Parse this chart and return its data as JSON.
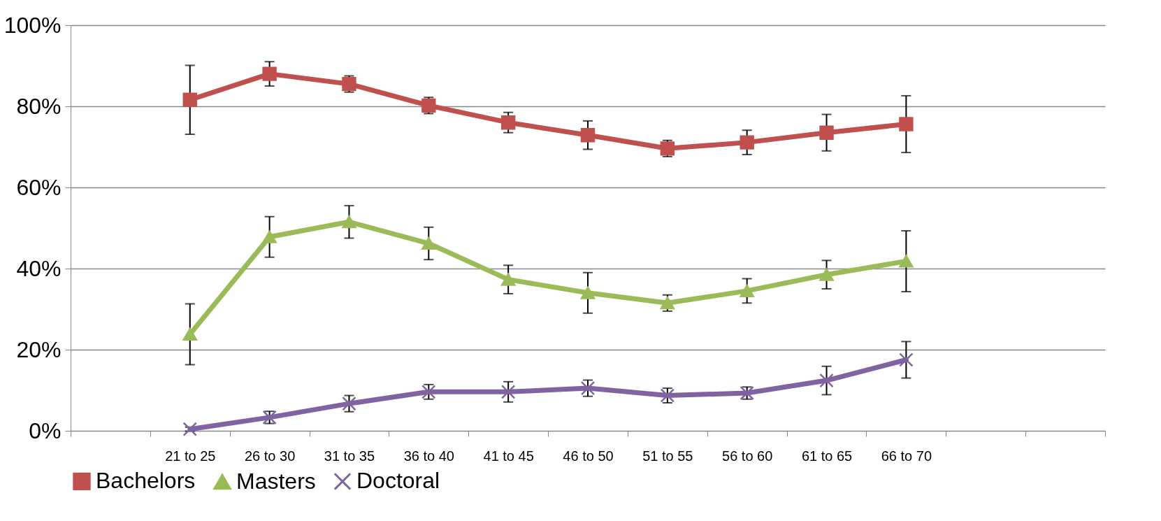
{
  "chart_data": {
    "type": "line",
    "categories": [
      null,
      "21 to 25",
      "26 to 30",
      "31 to 35",
      "36 to 40",
      "41 to 45",
      "46 to 50",
      "51 to 55",
      "56 to 60",
      "61 to 65",
      "66 to 70",
      null,
      null
    ],
    "series": [
      {
        "name": "Bachelors",
        "color": "#c0504d",
        "marker": "square",
        "values": [
          null,
          81.6,
          88.0,
          85.5,
          80.2,
          76.0,
          72.9,
          69.6,
          71.1,
          73.5,
          75.6,
          null,
          null
        ],
        "errors": [
          null,
          8.5,
          3,
          2,
          2,
          2.5,
          3.5,
          2,
          3,
          4.5,
          7,
          null,
          null
        ]
      },
      {
        "name": "Masters",
        "color": "#9bbb59",
        "marker": "triangle",
        "values": [
          null,
          23.8,
          47.8,
          51.5,
          46.2,
          37.3,
          34.0,
          31.5,
          34.5,
          38.5,
          41.8,
          null,
          null
        ],
        "errors": [
          null,
          7.5,
          5,
          4,
          4,
          3.5,
          5,
          2,
          3,
          3.5,
          7.5,
          null,
          null
        ]
      },
      {
        "name": "Doctoral",
        "color": "#8064a2",
        "marker": "cross",
        "values": [
          null,
          0.4,
          3.3,
          6.7,
          9.6,
          9.6,
          10.5,
          8.7,
          9.3,
          12.4,
          17.5,
          null,
          null
        ],
        "errors": [
          null,
          0.5,
          1.5,
          2,
          1.8,
          2.5,
          2,
          1.8,
          1.5,
          3.5,
          4.5,
          null,
          null
        ]
      }
    ],
    "ylim": [
      0,
      100
    ],
    "yticks": [
      {
        "value": 0,
        "label": "0%"
      },
      {
        "value": 20,
        "label": "20%"
      },
      {
        "value": 40,
        "label": "40%"
      },
      {
        "value": 60,
        "label": "60%"
      },
      {
        "value": 80,
        "label": "80%"
      },
      {
        "value": 100,
        "label": "100%"
      }
    ],
    "grid": "y",
    "legend": "bottom",
    "line_style": "solid"
  }
}
